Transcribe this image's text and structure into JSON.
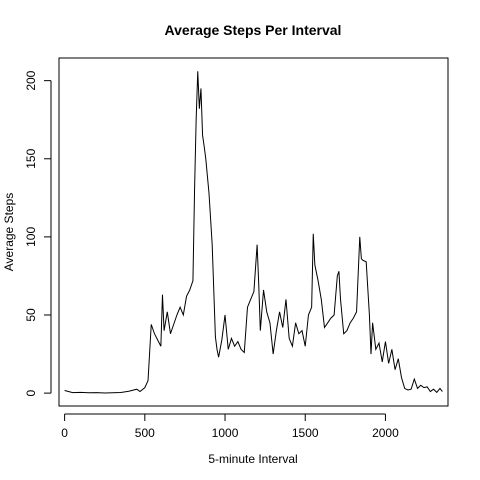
{
  "chart_data": {
    "type": "line",
    "title": "Average Steps Per Interval",
    "xlabel": "5-minute Interval",
    "ylabel": "Average Steps",
    "xlim": [
      -35,
      2390
    ],
    "ylim": [
      -8.25,
      214.5
    ],
    "xticks": [
      0,
      500,
      1000,
      1500,
      2000
    ],
    "yticks": [
      0,
      50,
      100,
      150,
      200
    ],
    "grid": false,
    "legend": "none",
    "line_color": "#000000",
    "x": [
      0,
      50,
      100,
      150,
      200,
      250,
      300,
      350,
      400,
      450,
      470,
      500,
      520,
      540,
      560,
      600,
      610,
      620,
      640,
      660,
      680,
      700,
      720,
      740,
      760,
      780,
      800,
      810,
      820,
      830,
      840,
      850,
      860,
      870,
      880,
      900,
      920,
      940,
      950,
      960,
      980,
      1000,
      1020,
      1040,
      1060,
      1080,
      1100,
      1120,
      1140,
      1160,
      1180,
      1200,
      1210,
      1220,
      1240,
      1260,
      1280,
      1300,
      1320,
      1340,
      1360,
      1380,
      1400,
      1420,
      1440,
      1460,
      1480,
      1500,
      1520,
      1540,
      1550,
      1560,
      1580,
      1600,
      1620,
      1640,
      1660,
      1680,
      1700,
      1710,
      1720,
      1740,
      1760,
      1780,
      1800,
      1820,
      1840,
      1850,
      1860,
      1880,
      1900,
      1910,
      1920,
      1940,
      1960,
      1980,
      2000,
      2020,
      2040,
      2060,
      2080,
      2100,
      2120,
      2140,
      2160,
      2180,
      2200,
      2220,
      2240,
      2260,
      2280,
      2300,
      2320,
      2340,
      2355
    ],
    "y": [
      1.7,
      0.3,
      0.5,
      0.2,
      0.3,
      0.1,
      0.2,
      0.4,
      1.2,
      2.5,
      1.0,
      3.5,
      8.0,
      44.0,
      38.0,
      30.0,
      63.0,
      40.0,
      52.0,
      38.0,
      44.0,
      50.0,
      55.0,
      50.0,
      62.0,
      66.0,
      72.0,
      130.0,
      175.0,
      206.0,
      182.0,
      195.0,
      165.0,
      158.0,
      150.0,
      128.0,
      95.0,
      36.0,
      28.0,
      23.0,
      34.0,
      50.0,
      28.0,
      35.0,
      30.0,
      33.0,
      28.0,
      26.0,
      55.0,
      60.0,
      65.0,
      95.0,
      70.0,
      40.0,
      66.0,
      52.0,
      45.0,
      25.0,
      40.0,
      52.0,
      42.0,
      60.0,
      35.0,
      30.0,
      45.0,
      38.0,
      40.0,
      30.0,
      50.0,
      55.0,
      102.0,
      82.0,
      72.0,
      60.0,
      42.0,
      45.0,
      48.0,
      50.0,
      75.0,
      78.0,
      60.0,
      38.0,
      40.0,
      45.0,
      48.0,
      52.0,
      100.0,
      86.0,
      85.0,
      84.0,
      50.0,
      25.0,
      45.0,
      28.0,
      32.0,
      20.0,
      33.0,
      19.0,
      28.0,
      15.0,
      22.0,
      10.0,
      3.0,
      2.0,
      2.5,
      9.0,
      3.0,
      5.0,
      3.5,
      4.0,
      1.0,
      2.5,
      0.5,
      3.0,
      1.0
    ]
  }
}
